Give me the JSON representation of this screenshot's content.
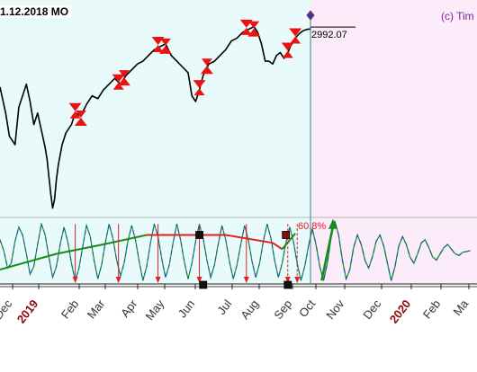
{
  "header": {
    "date_text": "1.12.2018 MO",
    "copyright_text": "(c) Tim"
  },
  "colors": {
    "history_bg": "#e8fafa",
    "forecast_bg": "#fcecfa",
    "price_line": "#000000",
    "cycle_blue": "#1f3fcf",
    "cycle_green": "#16a016",
    "trend_green": "#1a8a1a",
    "trend_red": "#e02020",
    "turn_marker": "#ee1111",
    "month_label": "#333333",
    "year_label": "#8b0a0a",
    "today_diamond": "#2040c0"
  },
  "chart_data": {
    "type": "line",
    "title": "",
    "xlabel": "",
    "ylabel": "",
    "price_label": "2992.07",
    "percent_label": "60.8%",
    "x_axis_labels": [
      {
        "text": "Dec",
        "kind": "month"
      },
      {
        "text": "2019",
        "kind": "year"
      },
      {
        "text": "Feb",
        "kind": "month"
      },
      {
        "text": "Mar",
        "kind": "month"
      },
      {
        "text": "Apr",
        "kind": "month"
      },
      {
        "text": "May",
        "kind": "month"
      },
      {
        "text": "Jun",
        "kind": "month"
      },
      {
        "text": "Jul",
        "kind": "month"
      },
      {
        "text": "Aug",
        "kind": "month"
      },
      {
        "text": "Sep",
        "kind": "month"
      },
      {
        "text": "Oct",
        "kind": "month"
      },
      {
        "text": "Nov",
        "kind": "month"
      },
      {
        "text": "Dec",
        "kind": "month"
      },
      {
        "text": "2020",
        "kind": "year"
      },
      {
        "text": "Feb",
        "kind": "month"
      },
      {
        "text": "Ma",
        "kind": "month"
      }
    ],
    "price_series": {
      "name": "",
      "approx_range": [
        2350,
        3030
      ],
      "points": [
        [
          0,
          2790
        ],
        [
          3,
          2700
        ],
        [
          5,
          2620
        ],
        [
          8,
          2590
        ],
        [
          10,
          2720
        ],
        [
          12,
          2760
        ],
        [
          14,
          2800
        ],
        [
          16,
          2740
        ],
        [
          18,
          2660
        ],
        [
          20,
          2700
        ],
        [
          22,
          2640
        ],
        [
          24,
          2580
        ],
        [
          25,
          2540
        ],
        [
          26,
          2480
        ],
        [
          27,
          2420
        ],
        [
          28,
          2370
        ],
        [
          29,
          2400
        ],
        [
          30,
          2470
        ],
        [
          31,
          2520
        ],
        [
          33,
          2590
        ],
        [
          35,
          2630
        ],
        [
          38,
          2660
        ],
        [
          40,
          2700
        ],
        [
          43,
          2690
        ],
        [
          46,
          2730
        ],
        [
          49,
          2760
        ],
        [
          52,
          2750
        ],
        [
          55,
          2780
        ],
        [
          58,
          2800
        ],
        [
          61,
          2820
        ],
        [
          64,
          2800
        ],
        [
          67,
          2830
        ],
        [
          70,
          2850
        ],
        [
          73,
          2870
        ],
        [
          76,
          2880
        ],
        [
          79,
          2900
        ],
        [
          82,
          2920
        ],
        [
          85,
          2930
        ],
        [
          88,
          2940
        ],
        [
          91,
          2900
        ],
        [
          94,
          2880
        ],
        [
          97,
          2860
        ],
        [
          100,
          2840
        ],
        [
          102,
          2760
        ],
        [
          104,
          2740
        ],
        [
          106,
          2780
        ],
        [
          108,
          2830
        ],
        [
          111,
          2870
        ],
        [
          114,
          2880
        ],
        [
          117,
          2900
        ],
        [
          120,
          2920
        ],
        [
          123,
          2950
        ],
        [
          126,
          2960
        ],
        [
          129,
          2980
        ],
        [
          132,
          2990
        ],
        [
          135,
          3000
        ],
        [
          137,
          2980
        ],
        [
          139,
          2940
        ],
        [
          141,
          2880
        ],
        [
          143,
          2880
        ],
        [
          145,
          2870
        ],
        [
          147,
          2900
        ],
        [
          149,
          2910
        ],
        [
          151,
          2890
        ],
        [
          153,
          2910
        ],
        [
          155,
          2940
        ],
        [
          157,
          2960
        ],
        [
          159,
          2975
        ],
        [
          161,
          2985
        ],
        [
          163,
          2990
        ],
        [
          165,
          2992.07
        ]
      ]
    },
    "cycle_series": {
      "name": "",
      "approx_range": [
        -1.0,
        1.0
      ],
      "history_end": 165,
      "points": [
        [
          0,
          0.35
        ],
        [
          2,
          0.0
        ],
        [
          4,
          -0.55
        ],
        [
          6,
          -0.4
        ],
        [
          8,
          0.3
        ],
        [
          10,
          0.75
        ],
        [
          12,
          0.5
        ],
        [
          14,
          -0.1
        ],
        [
          16,
          -0.75
        ],
        [
          18,
          -0.5
        ],
        [
          20,
          0.2
        ],
        [
          22,
          0.85
        ],
        [
          24,
          0.5
        ],
        [
          26,
          -0.2
        ],
        [
          28,
          -0.85
        ],
        [
          30,
          -0.5
        ],
        [
          32,
          0.2
        ],
        [
          34,
          0.75
        ],
        [
          36,
          0.3
        ],
        [
          38,
          -0.4
        ],
        [
          40,
          -0.95
        ],
        [
          42,
          -0.55
        ],
        [
          44,
          0.15
        ],
        [
          46,
          0.8
        ],
        [
          48,
          0.45
        ],
        [
          50,
          -0.3
        ],
        [
          52,
          -0.9
        ],
        [
          54,
          -0.45
        ],
        [
          56,
          0.25
        ],
        [
          58,
          0.85
        ],
        [
          60,
          0.4
        ],
        [
          62,
          -0.3
        ],
        [
          64,
          -0.8
        ],
        [
          66,
          -0.4
        ],
        [
          68,
          0.3
        ],
        [
          70,
          0.8
        ],
        [
          72,
          0.35
        ],
        [
          74,
          -0.35
        ],
        [
          76,
          -0.95
        ],
        [
          78,
          -0.5
        ],
        [
          80,
          0.25
        ],
        [
          82,
          0.85
        ],
        [
          84,
          0.45
        ],
        [
          86,
          -0.25
        ],
        [
          88,
          -0.85
        ],
        [
          90,
          -0.45
        ],
        [
          92,
          0.25
        ],
        [
          94,
          0.85
        ],
        [
          96,
          0.35
        ],
        [
          98,
          -0.35
        ],
        [
          100,
          -0.9
        ],
        [
          102,
          -0.4
        ],
        [
          104,
          0.3
        ],
        [
          106,
          0.85
        ],
        [
          108,
          0.4
        ],
        [
          110,
          -0.3
        ],
        [
          112,
          -0.85
        ],
        [
          114,
          -0.45
        ],
        [
          116,
          0.2
        ],
        [
          118,
          0.8
        ],
        [
          120,
          0.35
        ],
        [
          122,
          -0.35
        ],
        [
          124,
          -0.9
        ],
        [
          126,
          -0.45
        ],
        [
          128,
          0.2
        ],
        [
          130,
          0.8
        ],
        [
          132,
          0.35
        ],
        [
          134,
          -0.35
        ],
        [
          136,
          -0.85
        ],
        [
          138,
          -0.4
        ],
        [
          140,
          0.3
        ],
        [
          142,
          0.85
        ],
        [
          144,
          0.4
        ],
        [
          146,
          -0.3
        ],
        [
          148,
          -0.85
        ],
        [
          150,
          -0.4
        ],
        [
          152,
          0.25
        ],
        [
          154,
          0.75
        ],
        [
          156,
          0.3
        ],
        [
          158,
          -0.4
        ],
        [
          160,
          -0.95
        ],
        [
          162,
          -0.5
        ],
        [
          164,
          0.15
        ],
        [
          166,
          0.7
        ],
        [
          168,
          0.2
        ],
        [
          170,
          -0.5
        ],
        [
          172,
          -0.95
        ],
        [
          174,
          -0.4
        ],
        [
          176,
          0.4
        ],
        [
          178,
          0.95
        ],
        [
          180,
          0.5
        ],
        [
          182,
          -0.3
        ],
        [
          184,
          -0.9
        ],
        [
          186,
          -0.6
        ],
        [
          188,
          0.1
        ],
        [
          190,
          0.5
        ],
        [
          192,
          0.2
        ],
        [
          194,
          -0.3
        ],
        [
          196,
          -0.55
        ],
        [
          198,
          -0.2
        ],
        [
          200,
          0.3
        ],
        [
          202,
          0.5
        ],
        [
          204,
          0.15
        ],
        [
          206,
          -0.4
        ],
        [
          208,
          -0.95
        ],
        [
          210,
          -0.5
        ],
        [
          212,
          0.15
        ],
        [
          214,
          0.45
        ],
        [
          216,
          0.2
        ],
        [
          218,
          -0.2
        ],
        [
          220,
          -0.4
        ],
        [
          222,
          -0.1
        ],
        [
          224,
          0.25
        ],
        [
          226,
          0.35
        ],
        [
          228,
          0.1
        ],
        [
          230,
          -0.2
        ],
        [
          232,
          -0.3
        ],
        [
          234,
          -0.1
        ],
        [
          236,
          0.1
        ],
        [
          238,
          0.2
        ],
        [
          240,
          0.05
        ],
        [
          242,
          -0.1
        ],
        [
          244,
          -0.15
        ],
        [
          246,
          -0.05
        ],
        [
          250,
          0.0
        ]
      ]
    },
    "trend_lines": [
      {
        "color": "green",
        "points": [
          [
            0,
            -0.6
          ],
          [
            30,
            -0.1
          ],
          [
            55,
            0.2
          ],
          [
            78,
            0.5
          ]
        ]
      },
      {
        "color": "red",
        "points": [
          [
            78,
            0.5
          ],
          [
            100,
            0.5
          ],
          [
            120,
            0.5
          ],
          [
            145,
            0.25
          ],
          [
            150,
            0.05
          ]
        ]
      },
      {
        "color": "green",
        "points": [
          [
            150,
            0.05
          ],
          [
            157,
            0.55
          ]
        ]
      }
    ],
    "turning_points": [
      {
        "x": 40,
        "type": "top"
      },
      {
        "x": 43,
        "type": "bottom"
      },
      {
        "x": 63,
        "type": "top"
      },
      {
        "x": 66,
        "type": "bottom"
      },
      {
        "x": 84,
        "type": "top"
      },
      {
        "x": 88,
        "type": "bottom"
      },
      {
        "x": 106,
        "type": "top"
      },
      {
        "x": 110,
        "type": "bottom"
      },
      {
        "x": 131,
        "type": "top"
      },
      {
        "x": 135,
        "type": "bottom"
      },
      {
        "x": 153,
        "type": "top"
      },
      {
        "x": 157,
        "type": "top"
      }
    ],
    "cycle_arrows": [
      {
        "x": 40,
        "dashed": false
      },
      {
        "x": 63,
        "dashed": false
      },
      {
        "x": 84,
        "dashed": false
      },
      {
        "x": 106,
        "dashed": false
      },
      {
        "x": 131,
        "dashed": false
      },
      {
        "x": 153,
        "dashed": true
      },
      {
        "x": 158,
        "dashed": true
      }
    ],
    "squares": [
      {
        "x": 106,
        "panel": "cycle",
        "y": 0.5,
        "fill": "#111111"
      },
      {
        "x": 152,
        "panel": "cycle",
        "y": 0.5,
        "fill": "#8b0a0a"
      },
      {
        "x": 108,
        "panel": "axis",
        "fill": "#111111"
      },
      {
        "x": 153,
        "panel": "axis",
        "fill": "#111111"
      }
    ],
    "forecast_arrow": {
      "x_from": 171,
      "x_to": 177,
      "y_from": -0.95,
      "y_to": 0.95
    }
  }
}
